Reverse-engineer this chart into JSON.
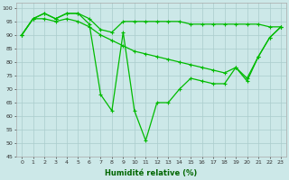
{
  "xlabel": "Humidité relative (%)",
  "background_color": "#cce8e8",
  "grid_color": "#aacccc",
  "line_color": "#00bb00",
  "xlim": [
    -0.5,
    23.5
  ],
  "ylim": [
    45,
    102
  ],
  "yticks": [
    45,
    50,
    55,
    60,
    65,
    70,
    75,
    80,
    85,
    90,
    95,
    100
  ],
  "xticks": [
    0,
    1,
    2,
    3,
    4,
    5,
    6,
    7,
    8,
    9,
    10,
    11,
    12,
    13,
    14,
    15,
    16,
    17,
    18,
    19,
    20,
    21,
    22,
    23
  ],
  "series1": [
    90,
    96,
    98,
    96,
    98,
    98,
    96,
    92,
    91,
    95,
    95,
    95,
    95,
    95,
    95,
    94,
    94,
    94,
    94,
    94,
    94,
    94,
    93,
    93
  ],
  "series2": [
    90,
    96,
    96,
    95,
    96,
    95,
    93,
    90,
    88,
    86,
    84,
    83,
    82,
    81,
    80,
    79,
    78,
    77,
    76,
    78,
    74,
    82,
    89,
    93
  ],
  "series3": [
    90,
    96,
    98,
    96,
    98,
    98,
    94,
    68,
    62,
    91,
    62,
    51,
    65,
    65,
    70,
    74,
    73,
    72,
    72,
    78,
    73,
    82,
    89,
    93
  ]
}
